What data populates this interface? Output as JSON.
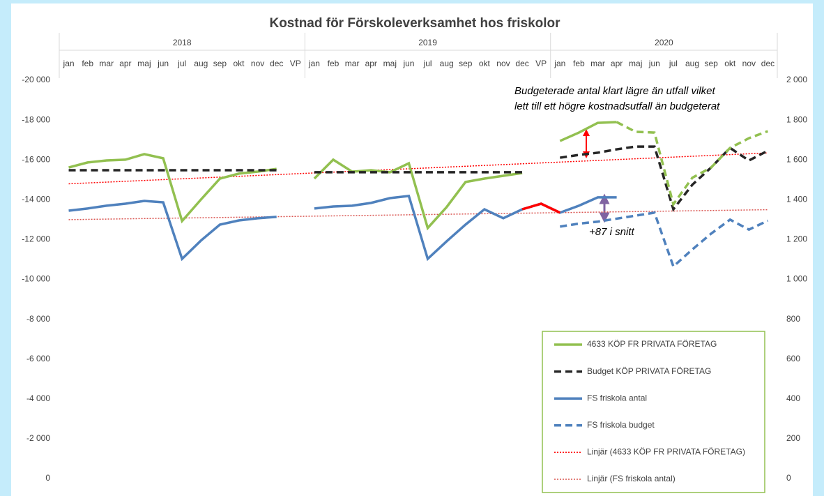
{
  "chart_data": {
    "type": "line",
    "title": "Kostnad för Förskoleverksamhet hos friskolor",
    "category_groups": [
      {
        "label": "2018",
        "categories": [
          "jan",
          "feb",
          "mar",
          "apr",
          "maj",
          "jun",
          "jul",
          "aug",
          "sep",
          "okt",
          "nov",
          "dec",
          "VP"
        ]
      },
      {
        "label": "2019",
        "categories": [
          "jan",
          "feb",
          "mar",
          "apr",
          "maj",
          "jun",
          "jul",
          "aug",
          "sep",
          "okt",
          "nov",
          "dec",
          "VP"
        ]
      },
      {
        "label": "2020",
        "categories": [
          "jan",
          "feb",
          "mar",
          "apr",
          "maj",
          "jun",
          "jul",
          "aug",
          "sep",
          "okt",
          "nov",
          "dec"
        ]
      }
    ],
    "ylim": [
      0,
      -20000
    ],
    "yticks": [
      0,
      {
        "value": -2000,
        "label": "-2 000"
      },
      {
        "value": -4000,
        "label": "-4 000"
      },
      {
        "value": -6000,
        "label": "-6 000"
      },
      {
        "value": -8000,
        "label": "-8 000"
      },
      {
        "value": -10000,
        "label": "-10 000"
      },
      {
        "value": -12000,
        "label": "-12 000"
      },
      {
        "value": -14000,
        "label": "-14 000"
      },
      {
        "value": -16000,
        "label": "-16 000"
      },
      {
        "value": -18000,
        "label": "-18 000"
      },
      {
        "value": -20000,
        "label": "-20 000"
      }
    ],
    "y2lim": [
      0,
      2000
    ],
    "y2ticks": [
      0,
      200,
      400,
      600,
      800,
      {
        "value": 1000,
        "label": "1 000"
      },
      {
        "value": 1200,
        "label": "1 200"
      },
      {
        "value": 1400,
        "label": "1 400"
      },
      {
        "value": 1600,
        "label": "1 600"
      },
      {
        "value": 1800,
        "label": "1 800"
      },
      {
        "value": 2000,
        "label": "2 000"
      }
    ],
    "grid": false,
    "legend": "bottom-right",
    "series": [
      {
        "name": "4633 KÖP FR PRIVATA FÖRETAG",
        "color": "#92c050",
        "style": "solid",
        "values": [
          -15620,
          -15870,
          -15970,
          -16010,
          -16290,
          -16080,
          -12930,
          -14010,
          -15060,
          -15310,
          -15410,
          -15550,
          null,
          -15060,
          -16010,
          -15410,
          -15480,
          -15380,
          -15830,
          -12580,
          -13630,
          -14890,
          -15060,
          -15200,
          -15340,
          null,
          -16950,
          -17370,
          -17860,
          -17900,
          null,
          null,
          null,
          null,
          null,
          null,
          null,
          null
        ]
      },
      {
        "name": "Budget KÖP PRIVATA FÖRETAG",
        "color": "#262626",
        "style": "dashed",
        "values": [
          -15480,
          -15480,
          -15480,
          -15480,
          -15480,
          -15480,
          -15480,
          -15480,
          -15480,
          -15480,
          -15480,
          -15480,
          null,
          -15380,
          -15380,
          -15380,
          -15380,
          -15380,
          -15380,
          -15380,
          -15380,
          -15380,
          -15380,
          -15380,
          -15380,
          null,
          -16110,
          -16250,
          -16360,
          -16530,
          -16670,
          -16670,
          -13520,
          -14750,
          -15620,
          -16600,
          -15970,
          -16460
        ]
      },
      {
        "name": "FS friskola antal",
        "color": "#4f81bd",
        "style": "solid",
        "axis": "y2",
        "values": [
          1345,
          1356,
          1370,
          1380,
          1394,
          1387,
          1103,
          1195,
          1275,
          1296,
          1307,
          1314,
          null,
          1356,
          1366,
          1370,
          1384,
          1408,
          1419,
          1103,
          1191,
          1275,
          1352,
          1307,
          1352,
          1380,
          1335,
          1370,
          1412,
          1412,
          null,
          null,
          null,
          null,
          null,
          null,
          null,
          null
        ]
      },
      {
        "name": "FS friskola budget",
        "color": "#4f81bd",
        "style": "dashed",
        "axis": "y2",
        "values": [
          null,
          null,
          null,
          null,
          null,
          null,
          null,
          null,
          null,
          null,
          null,
          null,
          null,
          null,
          null,
          null,
          null,
          null,
          null,
          null,
          null,
          null,
          null,
          null,
          null,
          null,
          1265,
          1280,
          1290,
          1305,
          1320,
          1335,
          1065,
          1150,
          1230,
          1300,
          1250,
          1295
        ]
      },
      {
        "color": "#92c050",
        "style": "dashed",
        "values": [
          null,
          null,
          null,
          null,
          null,
          null,
          null,
          null,
          null,
          null,
          null,
          null,
          null,
          null,
          null,
          null,
          null,
          null,
          null,
          null,
          null,
          null,
          null,
          null,
          null,
          null,
          null,
          null,
          null,
          -17900,
          -17410,
          -17370,
          -13770,
          -15100,
          -15620,
          -16600,
          -17090,
          -17440
        ]
      },
      {
        "color": "#ff0000",
        "style": "solid",
        "axis": "y2",
        "values": [
          null,
          null,
          null,
          null,
          null,
          null,
          null,
          null,
          null,
          null,
          null,
          null,
          null,
          null,
          null,
          null,
          null,
          null,
          null,
          null,
          null,
          null,
          null,
          null,
          1352,
          1380,
          1335,
          null,
          null,
          null,
          null,
          null,
          null,
          null,
          null,
          null,
          null,
          null
        ]
      }
    ],
    "trendlines": [
      {
        "name": "Linjär (4633 KÖP FR PRIVATA FÖRETAG)",
        "color": "#ff0000",
        "style": "dotted",
        "values": [
          -14800,
          -16350
        ]
      },
      {
        "name": "Linjär (FS friskola antal)",
        "color": "#d9534f",
        "style": "dotted",
        "axis": "y2",
        "values": [
          1300,
          1350
        ]
      }
    ],
    "annotations": [
      "Budgeterade antal klart lägre än utfall vilket",
      "lett till ett högre kostnadsutfall än budgeterat",
      "+87 i snitt"
    ]
  }
}
